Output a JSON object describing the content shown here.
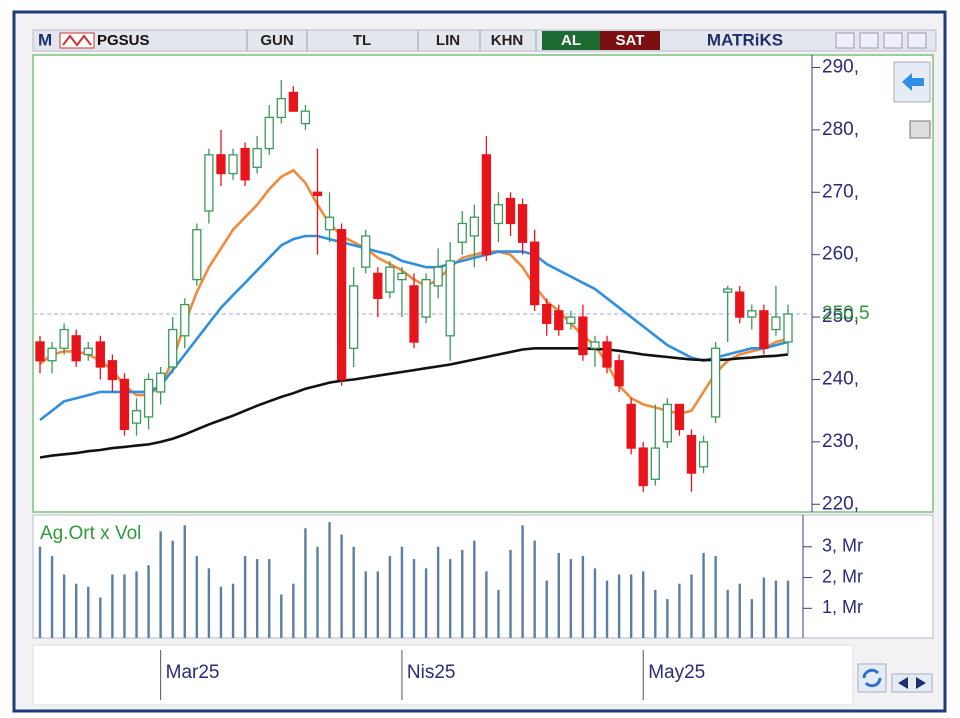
{
  "toolbar": {
    "logo": "M",
    "symbol": "PGSUS",
    "buttons": [
      "GUN",
      "TL",
      "LIN",
      "KHN"
    ],
    "buy": "AL",
    "sell": "SAT",
    "brand": "MATRiKS"
  },
  "chart_data": {
    "type": "candlestick",
    "categories": [
      null,
      null,
      null,
      null,
      null,
      null,
      null,
      null,
      null,
      null,
      "Mar25",
      null,
      null,
      null,
      null,
      null,
      null,
      null,
      null,
      null,
      null,
      null,
      null,
      null,
      null,
      null,
      null,
      null,
      null,
      null,
      "Nis25",
      null,
      null,
      null,
      null,
      null,
      null,
      null,
      null,
      null,
      null,
      null,
      null,
      null,
      null,
      null,
      null,
      null,
      null,
      null,
      "May25",
      null,
      null,
      null,
      null,
      null,
      null,
      null,
      null,
      null,
      null,
      null,
      null
    ],
    "open": [
      246,
      243,
      245,
      247,
      244,
      246,
      243,
      240,
      233,
      234,
      238,
      242,
      247,
      256,
      267,
      276,
      273,
      277,
      274,
      277,
      282,
      286,
      281,
      270,
      264,
      264,
      245,
      258,
      257,
      254,
      256,
      255,
      250,
      255,
      247,
      262,
      263,
      276,
      265,
      269,
      268,
      262,
      252,
      251,
      249,
      250,
      245,
      246,
      243,
      236,
      229,
      224,
      230,
      236,
      231,
      226,
      234,
      254,
      254,
      250,
      251,
      248,
      246
    ],
    "high": [
      247,
      246,
      249,
      248,
      246,
      247,
      244,
      241,
      237,
      241,
      242,
      250,
      253,
      265,
      277,
      280,
      277,
      278,
      279,
      284,
      288,
      287,
      284,
      277,
      270,
      265,
      258,
      264,
      258,
      259,
      258,
      257,
      257,
      261,
      262,
      267,
      268,
      279,
      270,
      270,
      269,
      264,
      253,
      252,
      251,
      252,
      247,
      247,
      244,
      237,
      230,
      236,
      237,
      236,
      232,
      231,
      246,
      255,
      255,
      252,
      252,
      255,
      252
    ],
    "low": [
      241,
      241,
      244,
      242,
      243,
      240,
      238,
      231,
      231,
      232,
      236,
      241,
      245,
      255,
      265,
      271,
      272,
      271,
      273,
      276,
      281,
      283,
      280,
      260,
      262,
      239,
      242,
      257,
      250,
      253,
      250,
      245,
      249,
      253,
      243,
      260,
      258,
      259,
      262,
      263,
      260,
      251,
      247,
      247,
      248,
      243,
      242,
      241,
      238,
      228,
      222,
      223,
      229,
      231,
      222,
      225,
      233,
      246,
      249,
      248,
      244,
      247,
      244
    ],
    "close": [
      243,
      245,
      248,
      243,
      245,
      242,
      240,
      232,
      235,
      240,
      241,
      248,
      252,
      264,
      276,
      273,
      276,
      272,
      277,
      282,
      285,
      283,
      283,
      269.5,
      266,
      240,
      255,
      263,
      253,
      258,
      257,
      246,
      256,
      258,
      259,
      265,
      266,
      260,
      268,
      265,
      262,
      252,
      249,
      248,
      250,
      244,
      246,
      242,
      239,
      229,
      223,
      229,
      236,
      232,
      225,
      230,
      245,
      254.5,
      250,
      251,
      245,
      250,
      250.5
    ],
    "up_color": "#3a9a5a",
    "down_color": "#e8141c",
    "overlays": [
      {
        "color": "#f08a3c",
        "values": [
          242.5,
          244,
          244.5,
          244.5,
          244,
          243,
          241.5,
          239,
          237.5,
          237.5,
          239,
          243,
          249,
          254,
          258,
          261,
          264,
          266,
          268,
          270.5,
          272.5,
          273.5,
          271.5,
          268,
          265,
          263,
          262,
          261,
          259.5,
          258.5,
          257.5,
          256,
          255,
          256,
          258,
          259.5,
          260,
          260.5,
          260.5,
          260,
          258,
          255,
          252.5,
          251,
          249,
          247,
          245.5,
          242.5,
          239,
          237,
          236,
          235.5,
          235,
          234.5,
          235,
          238,
          241,
          243,
          244,
          244.5,
          245,
          246,
          246.5
        ]
      },
      {
        "color": "#2f8fe0",
        "values": [
          233.5,
          235,
          236.5,
          237,
          237.5,
          238,
          238,
          238,
          238,
          238,
          239,
          241.5,
          244,
          246.5,
          249,
          251.5,
          253.5,
          255.5,
          257.5,
          259.5,
          261.5,
          262.5,
          263,
          263,
          262.5,
          262,
          261.5,
          261,
          260.5,
          260,
          259,
          258.5,
          258,
          258,
          258.5,
          259,
          259.5,
          260,
          260.5,
          260.5,
          260.5,
          260,
          258.5,
          257.5,
          256.5,
          255.5,
          254.5,
          253,
          251.5,
          250,
          248.5,
          247,
          245.5,
          244.5,
          243.5,
          243,
          243.5,
          244,
          244.5,
          245,
          245,
          245.5,
          246
        ]
      },
      {
        "color": "#111111",
        "values": [
          227.5,
          227.8,
          228,
          228.2,
          228.5,
          228.7,
          229,
          229.2,
          229.4,
          229.6,
          230,
          230.5,
          231.2,
          232,
          232.8,
          233.5,
          234.2,
          235,
          235.8,
          236.5,
          237.2,
          237.8,
          238.5,
          239,
          239.5,
          239.8,
          240,
          240.3,
          240.6,
          240.9,
          241.2,
          241.5,
          241.8,
          242.1,
          242.4,
          242.8,
          243.2,
          243.6,
          244,
          244.4,
          244.8,
          245,
          245,
          245,
          245,
          245,
          244.9,
          244.8,
          244.6,
          244.3,
          244,
          243.8,
          243.6,
          243.4,
          243.2,
          243.1,
          243.1,
          243.2,
          243.4,
          243.5,
          243.7,
          243.8,
          244
        ]
      }
    ],
    "ylim": [
      219,
      292
    ],
    "yticks": [
      {
        "value": 220,
        "label": "220,"
      },
      {
        "value": 230,
        "label": "230,"
      },
      {
        "value": 240,
        "label": "240,"
      },
      {
        "value": 250,
        "label": "250,"
      },
      {
        "value": 260,
        "label": "260,"
      },
      {
        "value": 270,
        "label": "270,"
      },
      {
        "value": 280,
        "label": "280,"
      },
      {
        "value": 290,
        "label": "290,"
      }
    ],
    "last_price": {
      "value": 250.5,
      "label": "250,5",
      "color": "#2f9a3a"
    },
    "volume": {
      "legend": "Ag.Ort x Vol",
      "color": "#5a7fa6",
      "values": [
        3.0,
        2.7,
        2.1,
        1.8,
        1.7,
        1.35,
        2.1,
        2.1,
        2.2,
        2.4,
        3.5,
        3.2,
        3.7,
        2.7,
        2.3,
        1.7,
        1.8,
        2.7,
        2.6,
        2.6,
        1.45,
        1.8,
        3.6,
        3.0,
        3.8,
        3.4,
        3.0,
        2.2,
        2.2,
        2.7,
        3.0,
        2.6,
        2.3,
        3.0,
        2.6,
        2.9,
        3.2,
        2.2,
        1.6,
        2.9,
        3.7,
        3.2,
        1.9,
        2.8,
        2.6,
        2.7,
        2.3,
        1.9,
        2.1,
        2.1,
        2.2,
        1.6,
        1.3,
        1.8,
        2.1,
        2.8,
        2.7,
        1.6,
        1.8,
        1.3,
        2.0,
        1.9,
        1.9
      ],
      "ylim": [
        0.1,
        4.0
      ],
      "yticks": [
        {
          "value": 1,
          "label": "1, Mr"
        },
        {
          "value": 2,
          "label": "2, Mr"
        },
        {
          "value": 3,
          "label": "3, Mr"
        }
      ]
    }
  }
}
